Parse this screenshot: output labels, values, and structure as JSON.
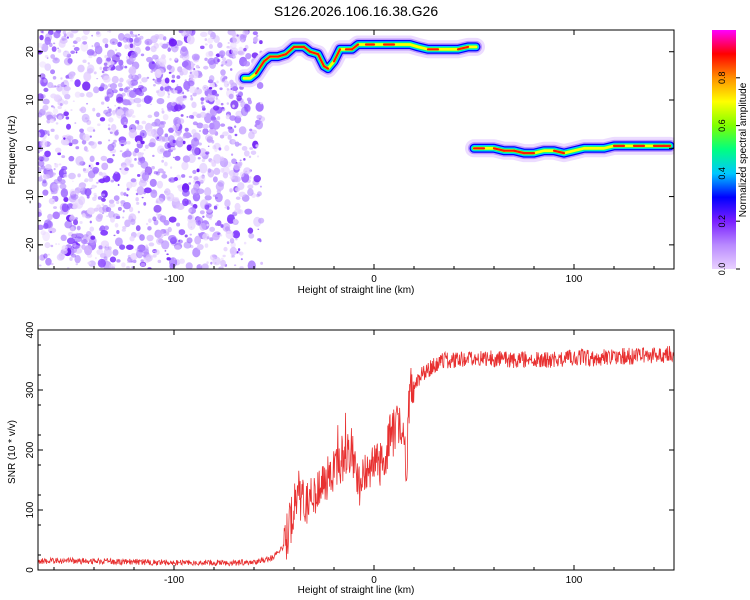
{
  "chart_data": [
    {
      "type": "heatmap",
      "title": "S126.2026.106.16.38.G26",
      "xlabel": "Height of straight line (km)",
      "ylabel": "Frequency (Hz)",
      "xlim": [
        -168,
        150
      ],
      "ylim": [
        -25,
        24.5
      ],
      "xticks": [
        -100,
        0,
        100
      ],
      "yticks": [
        -20,
        -10,
        0,
        10,
        20
      ],
      "colorbar": {
        "label": "Normalized spectral amplitude",
        "range": [
          0,
          1
        ],
        "ticks": [
          "0.0",
          "0.2",
          "0.4",
          "0.6",
          "0.8"
        ],
        "colors": [
          "#e9d2ff",
          "#b98aff",
          "#7a1fff",
          "#0000ff",
          "#00c8ff",
          "#00ff80",
          "#7fff00",
          "#ffff00",
          "#ff9000",
          "#ff0000",
          "#ff00ff"
        ]
      },
      "noise_region": {
        "x": [
          -168,
          -62
        ],
        "y": [
          -25,
          24.5
        ]
      },
      "ridges": [
        {
          "name": "",
          "points": [
            [
              -65,
              14.5
            ],
            [
              -62,
              14.5
            ],
            [
              -59,
              15.5
            ],
            [
              -55,
              18
            ],
            [
              -52,
              19
            ],
            [
              -48,
              19
            ],
            [
              -44,
              19.5
            ],
            [
              -40,
              21
            ],
            [
              -35,
              21
            ],
            [
              -32,
              20
            ],
            [
              -28,
              19.5
            ],
            [
              -25,
              17
            ],
            [
              -23,
              16.5
            ],
            [
              -20,
              18
            ],
            [
              -17,
              20.5
            ],
            [
              -14,
              20.5
            ],
            [
              -11,
              20.5
            ],
            [
              -8,
              21.5
            ],
            [
              -4,
              21.5
            ],
            [
              0,
              21.5
            ],
            [
              5,
              21.5
            ],
            [
              10,
              21.5
            ],
            [
              15,
              21.5
            ],
            [
              18,
              21.5
            ],
            [
              22,
              21
            ],
            [
              27,
              20.5
            ],
            [
              32,
              20.5
            ],
            [
              37,
              20.5
            ],
            [
              42,
              20.5
            ],
            [
              47,
              21
            ],
            [
              51,
              21
            ]
          ]
        },
        {
          "name": "",
          "points": [
            [
              50,
              0
            ],
            [
              55,
              0
            ],
            [
              60,
              0
            ],
            [
              65,
              -0.5
            ],
            [
              70,
              -0.5
            ],
            [
              75,
              -1
            ],
            [
              80,
              -1
            ],
            [
              85,
              -0.5
            ],
            [
              90,
              -0.5
            ],
            [
              95,
              -1
            ],
            [
              100,
              -0.5
            ],
            [
              105,
              0
            ],
            [
              110,
              0
            ],
            [
              115,
              0
            ],
            [
              120,
              0.5
            ],
            [
              125,
              0.5
            ],
            [
              130,
              0.5
            ],
            [
              135,
              0.5
            ],
            [
              140,
              0.5
            ],
            [
              145,
              0.5
            ],
            [
              148,
              0.5
            ]
          ]
        }
      ]
    },
    {
      "type": "line",
      "xlabel": "Height of straight line (km)",
      "ylabel": "SNR (10 * v/v)",
      "xlim": [
        -168,
        150
      ],
      "ylim": [
        0,
        400
      ],
      "xticks": [
        -100,
        0,
        100
      ],
      "yticks": [
        0,
        100,
        200,
        300,
        400
      ],
      "line_color": "#e83030",
      "series": [
        {
          "name": "",
          "x": [
            -168,
            -150,
            -130,
            -110,
            -90,
            -70,
            -60,
            -50,
            -45,
            -41,
            -38,
            -35,
            -30,
            -25,
            -20,
            -15,
            -11,
            -8,
            -5,
            -2,
            0,
            2,
            5,
            8,
            12,
            15,
            16,
            18,
            20,
            25,
            30,
            35,
            40,
            45,
            50,
            60,
            70,
            80,
            90,
            100,
            110,
            120,
            130,
            140,
            150
          ],
          "y": [
            15,
            15,
            14,
            13,
            12,
            12,
            13,
            22,
            40,
            90,
            130,
            110,
            130,
            150,
            160,
            190,
            200,
            140,
            160,
            150,
            175,
            170,
            190,
            220,
            240,
            250,
            135,
            320,
            310,
            330,
            340,
            350,
            348,
            352,
            355,
            352,
            350,
            352,
            350,
            355,
            353,
            357,
            356,
            358,
            360
          ]
        }
      ]
    }
  ]
}
